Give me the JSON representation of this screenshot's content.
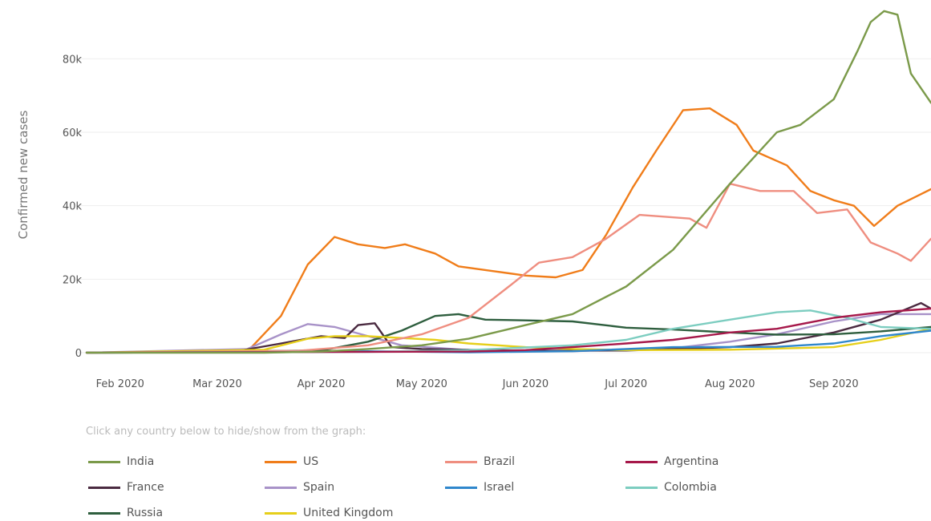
{
  "legend": {
    "hint": "Click any country below to hide/show from the graph:"
  },
  "chart_data": {
    "type": "line",
    "title": "",
    "xlabel": "",
    "ylabel": "Confirmed new cases",
    "x_ticks": [
      "Feb 2020",
      "Mar 2020",
      "Apr 2020",
      "May 2020",
      "Jun 2020",
      "Jul 2020",
      "Aug 2020",
      "Sep 2020"
    ],
    "y_ticks": [
      {
        "value": 0,
        "label": "0"
      },
      {
        "value": 20000,
        "label": "20k"
      },
      {
        "value": 40000,
        "label": "40k"
      },
      {
        "value": 60000,
        "label": "60k"
      },
      {
        "value": 80000,
        "label": "80k"
      }
    ],
    "ylim": [
      0,
      96000
    ],
    "xlim": [
      "2020-01-22",
      "2020-09-30"
    ],
    "grid": true,
    "legend_position": "bottom",
    "series": [
      {
        "name": "India",
        "color": "#7b9a4a",
        "points": [
          [
            "2020-01-22",
            0
          ],
          [
            "2020-03-15",
            0
          ],
          [
            "2020-04-01",
            300
          ],
          [
            "2020-04-15",
            1000
          ],
          [
            "2020-05-01",
            2000
          ],
          [
            "2020-05-15",
            3800
          ],
          [
            "2020-06-01",
            7500
          ],
          [
            "2020-06-15",
            10500
          ],
          [
            "2020-07-01",
            18000
          ],
          [
            "2020-07-15",
            28000
          ],
          [
            "2020-08-01",
            46000
          ],
          [
            "2020-08-08",
            53000
          ],
          [
            "2020-08-15",
            60000
          ],
          [
            "2020-08-22",
            62000
          ],
          [
            "2020-09-01",
            69000
          ],
          [
            "2020-09-08",
            82000
          ],
          [
            "2020-09-12",
            90000
          ],
          [
            "2020-09-16",
            93000
          ],
          [
            "2020-09-20",
            92000
          ],
          [
            "2020-09-24",
            76000
          ],
          [
            "2020-09-30",
            68000
          ]
        ]
      },
      {
        "name": "US",
        "color": "#f07d1a",
        "points": [
          [
            "2020-01-22",
            0
          ],
          [
            "2020-03-10",
            300
          ],
          [
            "2020-03-20",
            10000
          ],
          [
            "2020-03-28",
            24000
          ],
          [
            "2020-04-05",
            31500
          ],
          [
            "2020-04-12",
            29500
          ],
          [
            "2020-04-20",
            28500
          ],
          [
            "2020-04-26",
            29500
          ],
          [
            "2020-05-05",
            27000
          ],
          [
            "2020-05-12",
            23500
          ],
          [
            "2020-05-20",
            22500
          ],
          [
            "2020-06-01",
            21000
          ],
          [
            "2020-06-10",
            20500
          ],
          [
            "2020-06-18",
            22500
          ],
          [
            "2020-06-25",
            32000
          ],
          [
            "2020-07-03",
            45000
          ],
          [
            "2020-07-10",
            55000
          ],
          [
            "2020-07-18",
            66000
          ],
          [
            "2020-07-26",
            66500
          ],
          [
            "2020-08-03",
            62000
          ],
          [
            "2020-08-08",
            55000
          ],
          [
            "2020-08-18",
            51000
          ],
          [
            "2020-08-25",
            44000
          ],
          [
            "2020-09-01",
            41500
          ],
          [
            "2020-09-07",
            40000
          ],
          [
            "2020-09-13",
            34500
          ],
          [
            "2020-09-20",
            40000
          ],
          [
            "2020-09-30",
            44500
          ]
        ]
      },
      {
        "name": "Brazil",
        "color": "#ef8e80",
        "points": [
          [
            "2020-01-22",
            0
          ],
          [
            "2020-03-25",
            500
          ],
          [
            "2020-04-15",
            2000
          ],
          [
            "2020-05-01",
            5000
          ],
          [
            "2020-05-15",
            9500
          ],
          [
            "2020-05-27",
            18000
          ],
          [
            "2020-06-05",
            24500
          ],
          [
            "2020-06-15",
            26000
          ],
          [
            "2020-06-25",
            31000
          ],
          [
            "2020-07-05",
            37500
          ],
          [
            "2020-07-20",
            36500
          ],
          [
            "2020-07-25",
            34000
          ],
          [
            "2020-08-01",
            46000
          ],
          [
            "2020-08-10",
            44000
          ],
          [
            "2020-08-20",
            44000
          ],
          [
            "2020-08-27",
            38000
          ],
          [
            "2020-09-05",
            39000
          ],
          [
            "2020-09-12",
            30000
          ],
          [
            "2020-09-20",
            27000
          ],
          [
            "2020-09-24",
            25000
          ],
          [
            "2020-09-30",
            31000
          ]
        ]
      },
      {
        "name": "Argentina",
        "color": "#a6184a",
        "points": [
          [
            "2020-01-22",
            0
          ],
          [
            "2020-05-15",
            300
          ],
          [
            "2020-06-01",
            700
          ],
          [
            "2020-06-15",
            1500
          ],
          [
            "2020-07-01",
            2500
          ],
          [
            "2020-07-15",
            3500
          ],
          [
            "2020-08-01",
            5500
          ],
          [
            "2020-08-15",
            6500
          ],
          [
            "2020-09-01",
            9500
          ],
          [
            "2020-09-15",
            11000
          ],
          [
            "2020-09-30",
            12000
          ]
        ]
      },
      {
        "name": "France",
        "color": "#4a2a40",
        "points": [
          [
            "2020-01-22",
            0
          ],
          [
            "2020-03-05",
            100
          ],
          [
            "2020-03-20",
            2500
          ],
          [
            "2020-04-01",
            4500
          ],
          [
            "2020-04-08",
            4000
          ],
          [
            "2020-04-12",
            7500
          ],
          [
            "2020-04-17",
            8000
          ],
          [
            "2020-04-22",
            1500
          ],
          [
            "2020-05-01",
            1000
          ],
          [
            "2020-06-01",
            500
          ],
          [
            "2020-07-01",
            600
          ],
          [
            "2020-08-01",
            1500
          ],
          [
            "2020-08-15",
            2500
          ],
          [
            "2020-09-01",
            5500
          ],
          [
            "2020-09-15",
            9000
          ],
          [
            "2020-09-27",
            13500
          ],
          [
            "2020-09-30",
            12000
          ]
        ]
      },
      {
        "name": "Spain",
        "color": "#a892c8",
        "points": [
          [
            "2020-01-22",
            0
          ],
          [
            "2020-03-10",
            1000
          ],
          [
            "2020-03-20",
            5000
          ],
          [
            "2020-03-28",
            7800
          ],
          [
            "2020-04-05",
            7000
          ],
          [
            "2020-04-15",
            4500
          ],
          [
            "2020-04-25",
            2000
          ],
          [
            "2020-05-15",
            700
          ],
          [
            "2020-06-15",
            400
          ],
          [
            "2020-07-15",
            1200
          ],
          [
            "2020-08-01",
            3000
          ],
          [
            "2020-08-15",
            5000
          ],
          [
            "2020-09-01",
            8500
          ],
          [
            "2020-09-15",
            10500
          ],
          [
            "2020-09-30",
            10500
          ]
        ]
      },
      {
        "name": "Israel",
        "color": "#2f87cc",
        "points": [
          [
            "2020-01-22",
            0
          ],
          [
            "2020-03-25",
            200
          ],
          [
            "2020-04-15",
            400
          ],
          [
            "2020-05-15",
            100
          ],
          [
            "2020-06-15",
            400
          ],
          [
            "2020-07-15",
            1500
          ],
          [
            "2020-08-15",
            1600
          ],
          [
            "2020-09-01",
            2500
          ],
          [
            "2020-09-15",
            4500
          ],
          [
            "2020-09-30",
            6000
          ]
        ]
      },
      {
        "name": "Colombia",
        "color": "#7ccdc0",
        "points": [
          [
            "2020-01-22",
            0
          ],
          [
            "2020-04-15",
            200
          ],
          [
            "2020-05-15",
            700
          ],
          [
            "2020-06-15",
            2000
          ],
          [
            "2020-07-01",
            3500
          ],
          [
            "2020-07-15",
            6500
          ],
          [
            "2020-08-01",
            9000
          ],
          [
            "2020-08-15",
            11000
          ],
          [
            "2020-08-25",
            11500
          ],
          [
            "2020-09-05",
            9500
          ],
          [
            "2020-09-15",
            7000
          ],
          [
            "2020-09-30",
            6500
          ]
        ]
      },
      {
        "name": "Russia",
        "color": "#2e5e3e",
        "points": [
          [
            "2020-01-22",
            0
          ],
          [
            "2020-04-01",
            600
          ],
          [
            "2020-04-15",
            3000
          ],
          [
            "2020-04-25",
            6000
          ],
          [
            "2020-05-05",
            10000
          ],
          [
            "2020-05-12",
            10500
          ],
          [
            "2020-05-20",
            9000
          ],
          [
            "2020-06-01",
            8800
          ],
          [
            "2020-06-15",
            8500
          ],
          [
            "2020-07-01",
            6800
          ],
          [
            "2020-07-15",
            6300
          ],
          [
            "2020-08-01",
            5500
          ],
          [
            "2020-08-15",
            4900
          ],
          [
            "2020-09-01",
            5000
          ],
          [
            "2020-09-15",
            5800
          ],
          [
            "2020-09-30",
            7000
          ]
        ]
      },
      {
        "name": "United Kingdom",
        "color": "#e6cf1a",
        "points": [
          [
            "2020-01-22",
            0
          ],
          [
            "2020-03-15",
            800
          ],
          [
            "2020-03-28",
            3800
          ],
          [
            "2020-04-05",
            4500
          ],
          [
            "2020-04-15",
            4500
          ],
          [
            "2020-04-25",
            4000
          ],
          [
            "2020-05-05",
            3500
          ],
          [
            "2020-05-15",
            2500
          ],
          [
            "2020-06-01",
            1500
          ],
          [
            "2020-06-15",
            1000
          ],
          [
            "2020-07-01",
            700
          ],
          [
            "2020-08-01",
            800
          ],
          [
            "2020-09-01",
            1500
          ],
          [
            "2020-09-15",
            3500
          ],
          [
            "2020-09-30",
            6500
          ]
        ]
      }
    ]
  }
}
